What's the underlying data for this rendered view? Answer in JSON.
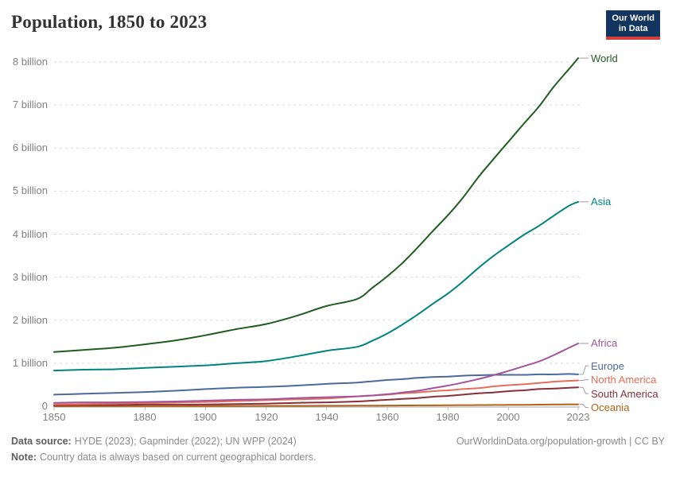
{
  "header": {
    "title": "Population, 1850 to 2023"
  },
  "logo": {
    "line1": "Our World",
    "line2": "in Data",
    "background": "#12355F",
    "bar_color": "#D63E3E",
    "text_color": "#ffffff"
  },
  "footer": {
    "source_label": "Data source:",
    "source_text": "HYDE (2023); Gapminder (2022); UN WPP (2024)",
    "note_label": "Note:",
    "note_text": "Country data is always based on current geographical borders.",
    "credit": "OurWorldinData.org/population-growth | CC BY"
  },
  "colors": {
    "grid": "#d9d9d9",
    "axis": "#a6a6a6",
    "tick": "#bdbdbd",
    "connector": "#9e9e9e",
    "tick_label": "#818181",
    "title": "#333333"
  },
  "chart_data": {
    "type": "line",
    "title": "Population, 1850 to 2023",
    "unit": "billion people",
    "grid": "horizontal dashed",
    "legend_position": "right of line ends",
    "xlim": [
      1850,
      2023
    ],
    "ylim": [
      0,
      8
    ],
    "x_ticks": [
      1850,
      1880,
      1900,
      1920,
      1940,
      1960,
      1980,
      2000,
      2023
    ],
    "x_tick_labels": [
      "1850",
      "1880",
      "1900",
      "1920",
      "1940",
      "1960",
      "1980",
      "2000",
      "2023"
    ],
    "y_ticks": [
      0,
      1,
      2,
      3,
      4,
      5,
      6,
      7,
      8
    ],
    "y_tick_labels": [
      "0",
      "1 billion",
      "2 billion",
      "3 billion",
      "4 billion",
      "5 billion",
      "6 billion",
      "7 billion",
      "8 billion"
    ],
    "x": [
      1850,
      1860,
      1870,
      1880,
      1890,
      1900,
      1910,
      1920,
      1930,
      1940,
      1950,
      1955,
      1960,
      1965,
      1970,
      1975,
      1980,
      1985,
      1990,
      1995,
      2000,
      2005,
      2010,
      2015,
      2020,
      2023
    ],
    "series": [
      {
        "name": "World",
        "color": "#215C21",
        "values": [
          1.26,
          1.31,
          1.36,
          1.44,
          1.53,
          1.65,
          1.79,
          1.91,
          2.1,
          2.33,
          2.49,
          2.75,
          3.02,
          3.33,
          3.69,
          4.07,
          4.44,
          4.85,
          5.32,
          5.74,
          6.15,
          6.56,
          6.96,
          7.43,
          7.84,
          8.09
        ]
      },
      {
        "name": "Asia",
        "color": "#00847E",
        "values": [
          0.83,
          0.85,
          0.86,
          0.89,
          0.92,
          0.95,
          1.0,
          1.05,
          1.16,
          1.29,
          1.38,
          1.52,
          1.69,
          1.9,
          2.13,
          2.38,
          2.62,
          2.9,
          3.21,
          3.49,
          3.74,
          3.98,
          4.19,
          4.43,
          4.66,
          4.75
        ]
      },
      {
        "name": "Africa",
        "color": "#A2559C",
        "values": [
          0.08,
          0.09,
          0.09,
          0.1,
          0.11,
          0.13,
          0.15,
          0.16,
          0.19,
          0.21,
          0.23,
          0.25,
          0.28,
          0.32,
          0.36,
          0.42,
          0.48,
          0.55,
          0.63,
          0.72,
          0.82,
          0.93,
          1.04,
          1.19,
          1.36,
          1.46
        ]
      },
      {
        "name": "Europe",
        "color": "#4C6A9C",
        "values": [
          0.27,
          0.29,
          0.31,
          0.33,
          0.36,
          0.4,
          0.43,
          0.45,
          0.48,
          0.52,
          0.55,
          0.58,
          0.61,
          0.63,
          0.66,
          0.68,
          0.69,
          0.71,
          0.72,
          0.73,
          0.73,
          0.73,
          0.74,
          0.74,
          0.75,
          0.74
        ]
      },
      {
        "name": "North America",
        "color": "#E56E5A",
        "values": [
          0.04,
          0.05,
          0.06,
          0.08,
          0.09,
          0.1,
          0.12,
          0.14,
          0.16,
          0.18,
          0.23,
          0.25,
          0.27,
          0.3,
          0.32,
          0.35,
          0.37,
          0.4,
          0.42,
          0.46,
          0.49,
          0.51,
          0.54,
          0.57,
          0.59,
          0.6
        ]
      },
      {
        "name": "South America",
        "color": "#883039",
        "values": [
          0.02,
          0.03,
          0.03,
          0.04,
          0.04,
          0.04,
          0.05,
          0.06,
          0.08,
          0.09,
          0.11,
          0.13,
          0.15,
          0.17,
          0.19,
          0.22,
          0.24,
          0.27,
          0.3,
          0.32,
          0.35,
          0.37,
          0.4,
          0.41,
          0.43,
          0.44
        ]
      },
      {
        "name": "Oceania",
        "color": "#B16214",
        "values": [
          0.002,
          0.003,
          0.003,
          0.004,
          0.005,
          0.006,
          0.007,
          0.009,
          0.01,
          0.011,
          0.013,
          0.014,
          0.016,
          0.018,
          0.02,
          0.021,
          0.023,
          0.025,
          0.027,
          0.029,
          0.031,
          0.034,
          0.037,
          0.04,
          0.044,
          0.045
        ]
      }
    ]
  }
}
